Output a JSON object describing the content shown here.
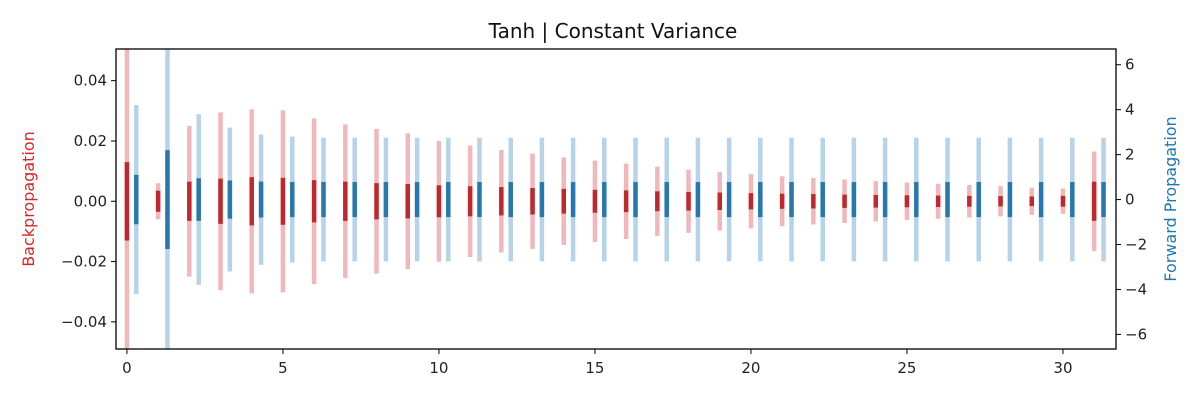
{
  "chart_data": {
    "type": "bar",
    "title": "Tanh | Constant Variance",
    "xlabel": "",
    "x_ticks": [
      0,
      5,
      10,
      15,
      20,
      25,
      30
    ],
    "xlim": [
      -0.35,
      31.7
    ],
    "left_axis": {
      "label": "Backpropagation",
      "color": "#d62728",
      "ylim": [
        -0.049,
        0.0505
      ],
      "ticks": [
        -0.04,
        -0.02,
        0.0,
        0.02,
        0.04
      ],
      "tick_labels": [
        "−0.04",
        "−0.02",
        "0.00",
        "0.02",
        "0.04"
      ]
    },
    "right_axis": {
      "label": "Forward Propagation",
      "color": "#1f77b4",
      "ylim": [
        -6.65,
        6.7
      ],
      "ticks": [
        -6,
        -4,
        -2,
        0,
        2,
        4,
        6
      ],
      "tick_labels": [
        "−6",
        "−4",
        "−2",
        "0",
        "2",
        "4",
        "6"
      ]
    },
    "series": [
      {
        "name": "Backpropagation",
        "axis": "left",
        "x_offset": 0,
        "light_color": "#f0b8bb",
        "dark_color": "#c0282e",
        "layers": [
          0,
          1,
          2,
          3,
          4,
          5,
          6,
          7,
          8,
          9,
          10,
          11,
          12,
          13,
          14,
          15,
          16,
          17,
          18,
          19,
          20,
          21,
          22,
          23,
          24,
          25,
          26,
          27,
          28,
          29,
          30,
          31
        ],
        "range": [
          0.07,
          0.006,
          0.025,
          0.0295,
          0.0305,
          0.0302,
          0.0275,
          0.0255,
          0.024,
          0.0225,
          0.02,
          0.0185,
          0.017,
          0.0158,
          0.0145,
          0.0135,
          0.0125,
          0.0115,
          0.0105,
          0.0097,
          0.009,
          0.0083,
          0.0077,
          0.0072,
          0.0067,
          0.0062,
          0.0058,
          0.0054,
          0.005,
          0.0045,
          0.0042,
          0.0165
        ],
        "std": [
          0.013,
          0.0035,
          0.0065,
          0.0075,
          0.008,
          0.0078,
          0.007,
          0.0065,
          0.006,
          0.0057,
          0.0053,
          0.005,
          0.0047,
          0.0044,
          0.0041,
          0.0038,
          0.0036,
          0.0033,
          0.0031,
          0.0029,
          0.0027,
          0.0025,
          0.0024,
          0.0022,
          0.0021,
          0.002,
          0.0019,
          0.0018,
          0.0017,
          0.0016,
          0.0018,
          0.0065
        ]
      },
      {
        "name": "Forward Propagation",
        "axis": "right",
        "x_offset": 0.3,
        "light_color": "#b7d3e7",
        "dark_color": "#2878b0",
        "layers": [
          0,
          1,
          2,
          3,
          4,
          5,
          6,
          7,
          8,
          9,
          10,
          11,
          12,
          13,
          14,
          15,
          16,
          17,
          18,
          19,
          20,
          21,
          22,
          23,
          24,
          25,
          26,
          27,
          28,
          29,
          30,
          31
        ],
        "range": [
          4.2,
          8.0,
          3.8,
          3.2,
          2.9,
          2.8,
          2.75,
          2.75,
          2.75,
          2.75,
          2.75,
          2.75,
          2.75,
          2.75,
          2.75,
          2.75,
          2.75,
          2.75,
          2.75,
          2.75,
          2.75,
          2.75,
          2.75,
          2.75,
          2.75,
          2.75,
          2.75,
          2.75,
          2.75,
          2.75,
          2.75,
          2.75
        ],
        "std": [
          1.1,
          2.2,
          0.95,
          0.85,
          0.8,
          0.78,
          0.78,
          0.78,
          0.78,
          0.78,
          0.78,
          0.78,
          0.78,
          0.78,
          0.78,
          0.78,
          0.78,
          0.78,
          0.78,
          0.78,
          0.78,
          0.78,
          0.78,
          0.78,
          0.78,
          0.78,
          0.78,
          0.78,
          0.78,
          0.78,
          0.78,
          0.78
        ]
      }
    ],
    "grid": false,
    "legend": "none"
  }
}
